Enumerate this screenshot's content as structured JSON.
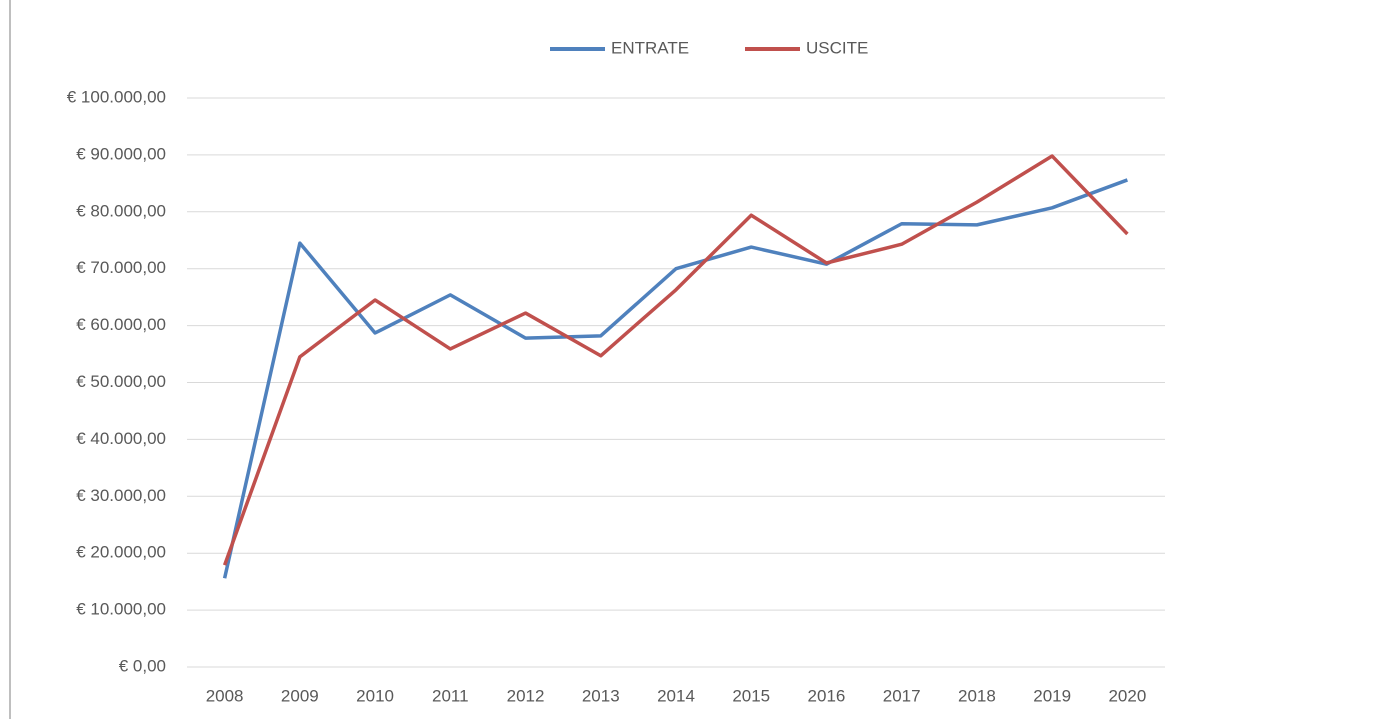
{
  "chart_data": {
    "type": "line",
    "categories": [
      "2008",
      "2009",
      "2010",
      "2011",
      "2012",
      "2013",
      "2014",
      "2015",
      "2016",
      "2017",
      "2018",
      "2019",
      "2020"
    ],
    "series": [
      {
        "name": "ENTRATE",
        "color": "#4f81bd",
        "values": [
          15600,
          74500,
          58700,
          65400,
          57800,
          58200,
          70000,
          73800,
          70800,
          77900,
          77700,
          80700,
          85600
        ]
      },
      {
        "name": "USCITE",
        "color": "#c0504d",
        "values": [
          17900,
          54500,
          64500,
          55900,
          62200,
          54700,
          66300,
          79400,
          71000,
          74300,
          81700,
          89800,
          76100
        ]
      }
    ],
    "ylim": [
      0,
      100000
    ],
    "yticks": [
      {
        "value": 0,
        "label": "€ 0,00"
      },
      {
        "value": 10000,
        "label": "€ 10.000,00"
      },
      {
        "value": 20000,
        "label": "€ 20.000,00"
      },
      {
        "value": 30000,
        "label": "€ 30.000,00"
      },
      {
        "value": 40000,
        "label": "€ 40.000,00"
      },
      {
        "value": 50000,
        "label": "€ 50.000,00"
      },
      {
        "value": 60000,
        "label": "€ 60.000,00"
      },
      {
        "value": 70000,
        "label": "€ 70.000,00"
      },
      {
        "value": 80000,
        "label": "€ 80.000,00"
      },
      {
        "value": 90000,
        "label": "€ 90.000,00"
      },
      {
        "value": 100000,
        "label": "€ 100.000,00"
      }
    ],
    "grid": true,
    "legend": "top"
  }
}
